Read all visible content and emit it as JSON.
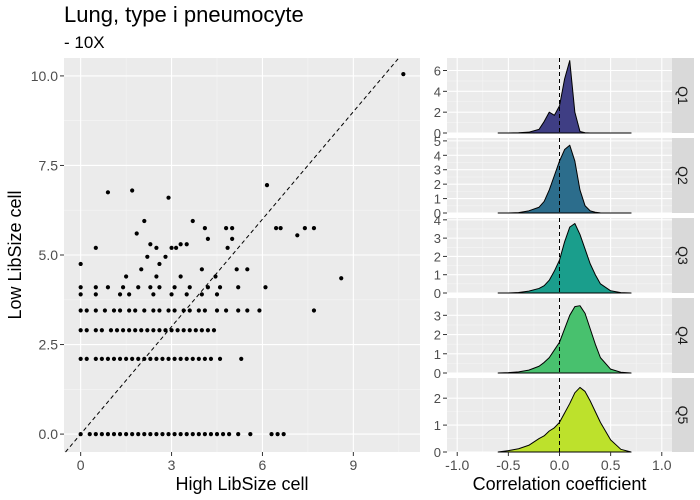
{
  "title": "Lung, type i pneumocyte",
  "subtitle": "- 10X",
  "chart_data": [
    {
      "type": "scatter",
      "xlabel": "High LibSize cell",
      "ylabel": "Low LibSize cell",
      "xlim": [
        -0.55,
        11.2
      ],
      "ylim": [
        -0.5,
        10.5
      ],
      "x_ticks": [
        0,
        3,
        6,
        9
      ],
      "x_tick_labels": [
        "0",
        "3",
        "6",
        "9"
      ],
      "y_ticks": [
        0,
        2.5,
        5,
        7.5,
        10
      ],
      "y_tick_labels": [
        "0.0",
        "2.5",
        "5.0",
        "7.5",
        "10.0"
      ],
      "reference_line": "y = x (dashed)",
      "grid": true,
      "points": [
        [
          10.65,
          10.05
        ],
        [
          0.9,
          6.75
        ],
        [
          1.7,
          6.8
        ],
        [
          2.9,
          6.6
        ],
        [
          6.15,
          6.95
        ],
        [
          2.1,
          5.95
        ],
        [
          3.7,
          5.95
        ],
        [
          1.85,
          5.6
        ],
        [
          4.1,
          5.75
        ],
        [
          4.8,
          5.75
        ],
        [
          5.0,
          5.75
        ],
        [
          6.45,
          5.75
        ],
        [
          6.6,
          5.75
        ],
        [
          7.4,
          5.75
        ],
        [
          7.7,
          5.75
        ],
        [
          4.2,
          5.45
        ],
        [
          5.0,
          5.45
        ],
        [
          7.15,
          5.55
        ],
        [
          2.3,
          5.3
        ],
        [
          3.3,
          5.3
        ],
        [
          3.5,
          5.3
        ],
        [
          0.5,
          5.2
        ],
        [
          2.5,
          5.2
        ],
        [
          3.0,
          5.2
        ],
        [
          3.15,
          5.2
        ],
        [
          4.85,
          5.2
        ],
        [
          2.2,
          4.95
        ],
        [
          2.8,
          4.95
        ],
        [
          0.0,
          4.75
        ],
        [
          2.6,
          4.75
        ],
        [
          2.0,
          4.6
        ],
        [
          4.0,
          4.6
        ],
        [
          5.15,
          4.6
        ],
        [
          5.5,
          4.6
        ],
        [
          1.5,
          4.4
        ],
        [
          2.5,
          4.4
        ],
        [
          3.3,
          4.4
        ],
        [
          4.45,
          4.4
        ],
        [
          8.6,
          4.35
        ],
        [
          0.0,
          4.1
        ],
        [
          0.5,
          4.1
        ],
        [
          0.9,
          4.1
        ],
        [
          1.4,
          4.1
        ],
        [
          1.9,
          4.1
        ],
        [
          2.3,
          4.1
        ],
        [
          2.6,
          4.1
        ],
        [
          3.1,
          4.1
        ],
        [
          3.6,
          4.1
        ],
        [
          4.2,
          4.1
        ],
        [
          4.6,
          4.1
        ],
        [
          5.2,
          4.1
        ],
        [
          6.1,
          4.1
        ],
        [
          0.0,
          3.9
        ],
        [
          0.5,
          3.9
        ],
        [
          1.3,
          3.9
        ],
        [
          1.6,
          3.9
        ],
        [
          2.4,
          3.9
        ],
        [
          3.0,
          3.9
        ],
        [
          3.5,
          3.9
        ],
        [
          4.0,
          3.9
        ],
        [
          4.5,
          3.9
        ],
        [
          0.0,
          3.45
        ],
        [
          0.2,
          3.45
        ],
        [
          0.5,
          3.45
        ],
        [
          0.8,
          3.45
        ],
        [
          1.1,
          3.45
        ],
        [
          1.3,
          3.45
        ],
        [
          1.6,
          3.45
        ],
        [
          1.8,
          3.45
        ],
        [
          2.1,
          3.45
        ],
        [
          2.4,
          3.45
        ],
        [
          2.6,
          3.45
        ],
        [
          2.9,
          3.45
        ],
        [
          3.1,
          3.45
        ],
        [
          3.4,
          3.45
        ],
        [
          3.6,
          3.45
        ],
        [
          3.9,
          3.45
        ],
        [
          4.1,
          3.45
        ],
        [
          4.5,
          3.45
        ],
        [
          4.8,
          3.45
        ],
        [
          5.2,
          3.45
        ],
        [
          5.5,
          3.45
        ],
        [
          5.9,
          3.45
        ],
        [
          7.7,
          3.45
        ],
        [
          0.0,
          2.9
        ],
        [
          0.2,
          2.9
        ],
        [
          0.5,
          2.9
        ],
        [
          0.7,
          2.9
        ],
        [
          1.0,
          2.9
        ],
        [
          1.2,
          2.9
        ],
        [
          1.4,
          2.9
        ],
        [
          1.6,
          2.9
        ],
        [
          1.8,
          2.9
        ],
        [
          2.0,
          2.9
        ],
        [
          2.2,
          2.9
        ],
        [
          2.4,
          2.9
        ],
        [
          2.6,
          2.9
        ],
        [
          2.8,
          2.9
        ],
        [
          3.0,
          2.9
        ],
        [
          3.2,
          2.9
        ],
        [
          3.4,
          2.9
        ],
        [
          3.6,
          2.9
        ],
        [
          3.8,
          2.9
        ],
        [
          4.0,
          2.9
        ],
        [
          4.2,
          2.9
        ],
        [
          4.4,
          2.9
        ],
        [
          0.0,
          2.1
        ],
        [
          0.2,
          2.1
        ],
        [
          0.5,
          2.1
        ],
        [
          0.7,
          2.1
        ],
        [
          0.9,
          2.1
        ],
        [
          1.1,
          2.1
        ],
        [
          1.3,
          2.1
        ],
        [
          1.5,
          2.1
        ],
        [
          1.7,
          2.1
        ],
        [
          1.9,
          2.1
        ],
        [
          2.1,
          2.1
        ],
        [
          2.3,
          2.1
        ],
        [
          2.5,
          2.1
        ],
        [
          2.7,
          2.1
        ],
        [
          2.9,
          2.1
        ],
        [
          3.1,
          2.1
        ],
        [
          3.3,
          2.1
        ],
        [
          3.5,
          2.1
        ],
        [
          3.7,
          2.1
        ],
        [
          3.9,
          2.1
        ],
        [
          4.1,
          2.1
        ],
        [
          4.3,
          2.1
        ],
        [
          4.6,
          2.1
        ],
        [
          5.3,
          2.1
        ],
        [
          0.0,
          0.0
        ],
        [
          0.3,
          0.0
        ],
        [
          0.5,
          0.0
        ],
        [
          0.7,
          0.0
        ],
        [
          0.9,
          0.0
        ],
        [
          1.1,
          0.0
        ],
        [
          1.3,
          0.0
        ],
        [
          1.5,
          0.0
        ],
        [
          1.7,
          0.0
        ],
        [
          1.9,
          0.0
        ],
        [
          2.1,
          0.0
        ],
        [
          2.3,
          0.0
        ],
        [
          2.5,
          0.0
        ],
        [
          2.7,
          0.0
        ],
        [
          2.9,
          0.0
        ],
        [
          3.1,
          0.0
        ],
        [
          3.3,
          0.0
        ],
        [
          3.5,
          0.0
        ],
        [
          3.7,
          0.0
        ],
        [
          3.9,
          0.0
        ],
        [
          4.1,
          0.0
        ],
        [
          4.3,
          0.0
        ],
        [
          4.5,
          0.0
        ],
        [
          4.7,
          0.0
        ],
        [
          4.9,
          0.0
        ],
        [
          5.2,
          0.0
        ],
        [
          5.6,
          0.0
        ],
        [
          6.3,
          0.0
        ],
        [
          6.5,
          0.0
        ],
        [
          6.7,
          0.0
        ]
      ]
    },
    {
      "type": "area",
      "subtype": "density facets",
      "xlabel": "Correlation coefficient",
      "xlim": [
        -1.1,
        1.1
      ],
      "x_ticks": [
        -1.0,
        -0.5,
        0.0,
        0.5,
        1.0
      ],
      "x_tick_labels": [
        "-1.0",
        "-0.5",
        "0.0",
        "0.5",
        "1.0"
      ],
      "reference_line": "x = 0 (dashed)",
      "grid": true,
      "x": [
        -0.6,
        -0.5,
        -0.4,
        -0.3,
        -0.2,
        -0.15,
        -0.1,
        -0.05,
        0.0,
        0.05,
        0.1,
        0.15,
        0.2,
        0.25,
        0.3,
        0.35,
        0.4,
        0.5,
        0.6,
        0.7
      ],
      "series": [
        {
          "name": "Q1",
          "color": "#3f3e84",
          "ylim": [
            0,
            7.2
          ],
          "y_ticks": [
            0,
            2,
            4,
            6
          ],
          "values": [
            0,
            0,
            0.02,
            0.08,
            0.35,
            1.1,
            2.0,
            1.7,
            2.6,
            5.2,
            6.95,
            2.0,
            0.15,
            0.02,
            0,
            0,
            0,
            0,
            0,
            0
          ]
        },
        {
          "name": "Q2",
          "color": "#2c6d8c",
          "ylim": [
            0,
            5.2
          ],
          "y_ticks": [
            0,
            1,
            2,
            3,
            4,
            5
          ],
          "values": [
            0,
            0,
            0.03,
            0.15,
            0.4,
            0.8,
            1.6,
            2.6,
            3.6,
            4.4,
            4.7,
            3.6,
            1.6,
            0.5,
            0.15,
            0.05,
            0.01,
            0,
            0,
            0
          ]
        },
        {
          "name": "Q3",
          "color": "#1a9e8c",
          "ylim": [
            0,
            4.1
          ],
          "y_ticks": [
            0,
            1,
            2,
            3,
            4
          ],
          "values": [
            0,
            0,
            0.03,
            0.1,
            0.25,
            0.4,
            0.7,
            1.2,
            1.8,
            2.8,
            3.6,
            3.8,
            3.2,
            2.4,
            1.6,
            1.0,
            0.5,
            0.12,
            0.02,
            0
          ]
        },
        {
          "name": "Q4",
          "color": "#48c16e",
          "ylim": [
            0,
            3.9
          ],
          "y_ticks": [
            0,
            1,
            2,
            3
          ],
          "values": [
            0,
            0.02,
            0.06,
            0.15,
            0.35,
            0.55,
            0.8,
            1.2,
            1.6,
            2.3,
            3.0,
            3.45,
            3.5,
            3.1,
            2.3,
            1.5,
            0.8,
            0.2,
            0.04,
            0
          ]
        },
        {
          "name": "Q5",
          "color": "#bde12c",
          "ylim": [
            0,
            2.75
          ],
          "y_ticks": [
            0,
            1,
            2
          ],
          "values": [
            0,
            0.05,
            0.12,
            0.25,
            0.5,
            0.6,
            0.78,
            0.9,
            1.1,
            1.45,
            1.8,
            2.2,
            2.4,
            2.25,
            1.9,
            1.5,
            1.1,
            0.45,
            0.1,
            0
          ]
        }
      ]
    }
  ]
}
